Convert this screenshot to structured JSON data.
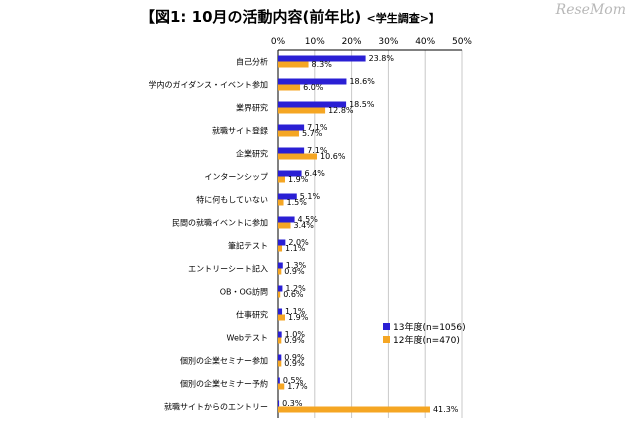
{
  "title": "【図1:  10月の活動内容(前年比)",
  "title_suffix": "<学生調査>】",
  "watermark": "ReseMom",
  "chart_data": {
    "type": "bar",
    "orientation": "horizontal",
    "xlim": [
      0,
      50
    ],
    "xticks": [
      "0%",
      "10%",
      "20%",
      "30%",
      "40%",
      "50%"
    ],
    "grid": true,
    "legend_position": "bottom-right",
    "categories": [
      "自己分析",
      "学内のガイダンス・イベント参加",
      "業界研究",
      "就職サイト登録",
      "企業研究",
      "インターンシップ",
      "特に何もしていない",
      "民間の就職イベントに参加",
      "筆記テスト",
      "エントリーシート記入",
      "OB・OG訪問",
      "仕事研究",
      "Webテスト",
      "個別の企業セミナー参加",
      "個別の企業セミナー予約",
      "就職サイトからのエントリー"
    ],
    "series": [
      {
        "name": "13年度(n=1056)",
        "color": "#2a1fd4",
        "values": [
          23.8,
          18.6,
          18.5,
          7.1,
          7.1,
          6.4,
          5.1,
          4.5,
          2.0,
          1.3,
          1.2,
          1.1,
          1.0,
          0.9,
          0.5,
          0.3
        ],
        "labels": [
          "23.8%",
          "18.6%",
          "18.5%",
          "7.1%",
          "7.1%",
          "6.4%",
          "5.1%",
          "4.5%",
          "2.0%",
          "1.3%",
          "1.2%",
          "1.1%",
          "1.0%",
          "0.9%",
          "0.5%",
          "0.3%"
        ]
      },
      {
        "name": "12年度(n=470)",
        "color": "#f5a623",
        "values": [
          8.3,
          6.0,
          12.8,
          5.7,
          10.6,
          1.9,
          1.5,
          3.4,
          1.1,
          0.9,
          0.6,
          1.9,
          0.9,
          0.9,
          1.7,
          41.3
        ],
        "labels": [
          "8.3%",
          "6.0%",
          "12.8%",
          "5.7%",
          "10.6%",
          "1.9%",
          "1.5%",
          "3.4%",
          "1.1%",
          "0.9%",
          "0.6%",
          "1.9%",
          "0.9%",
          "0.9%",
          "1.7%",
          "41.3%"
        ]
      }
    ]
  }
}
